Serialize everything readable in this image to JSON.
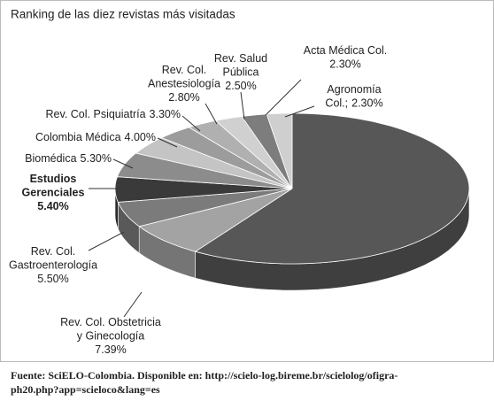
{
  "chart_data": {
    "type": "pie3d",
    "title": "Ranking de las diez revistas más visitadas",
    "categories": [
      null,
      [
        "Rev. Col. Obstetricia",
        "y Ginecología"
      ],
      [
        "Rev. Col.",
        "Gastroenterología"
      ],
      [
        "Estudios",
        "Gerenciales"
      ],
      [
        "Biomédica"
      ],
      [
        "Colombia Médica"
      ],
      [
        "Rev. Col. Psiquiatría"
      ],
      [
        "Rev. Col.",
        "Anestesiología"
      ],
      [
        "Rev. Salud",
        "Pública"
      ],
      [
        "Acta Médica Col."
      ],
      [
        "Agronomía",
        "Col.;"
      ]
    ],
    "values": [
      59.21,
      7.39,
      5.5,
      5.4,
      5.3,
      4.0,
      3.3,
      2.8,
      2.5,
      2.3,
      2.3
    ],
    "value_labels": [
      null,
      "7.39%",
      "5.50%",
      "5.40%",
      "5.30%",
      "4.00%",
      "3.30%",
      "2.80%",
      "2.50%",
      "2.30%",
      "2.30%"
    ],
    "colors": [
      "#575757",
      "#a3a3a3",
      "#7b7b7b",
      "#3a3a3a",
      "#8c8c8c",
      "#c4c4c4",
      "#9c9c9c",
      "#b0b0b0",
      "#d0d0d0",
      "#7d7d7d",
      "#cfcfcf"
    ],
    "source": [
      "Fuente: SciELO-Colombia. Disponible en: http://scielo-log.bireme.br/scielolog/ofigra-",
      "ph20.php?app=scieloco&lang=es"
    ]
  }
}
